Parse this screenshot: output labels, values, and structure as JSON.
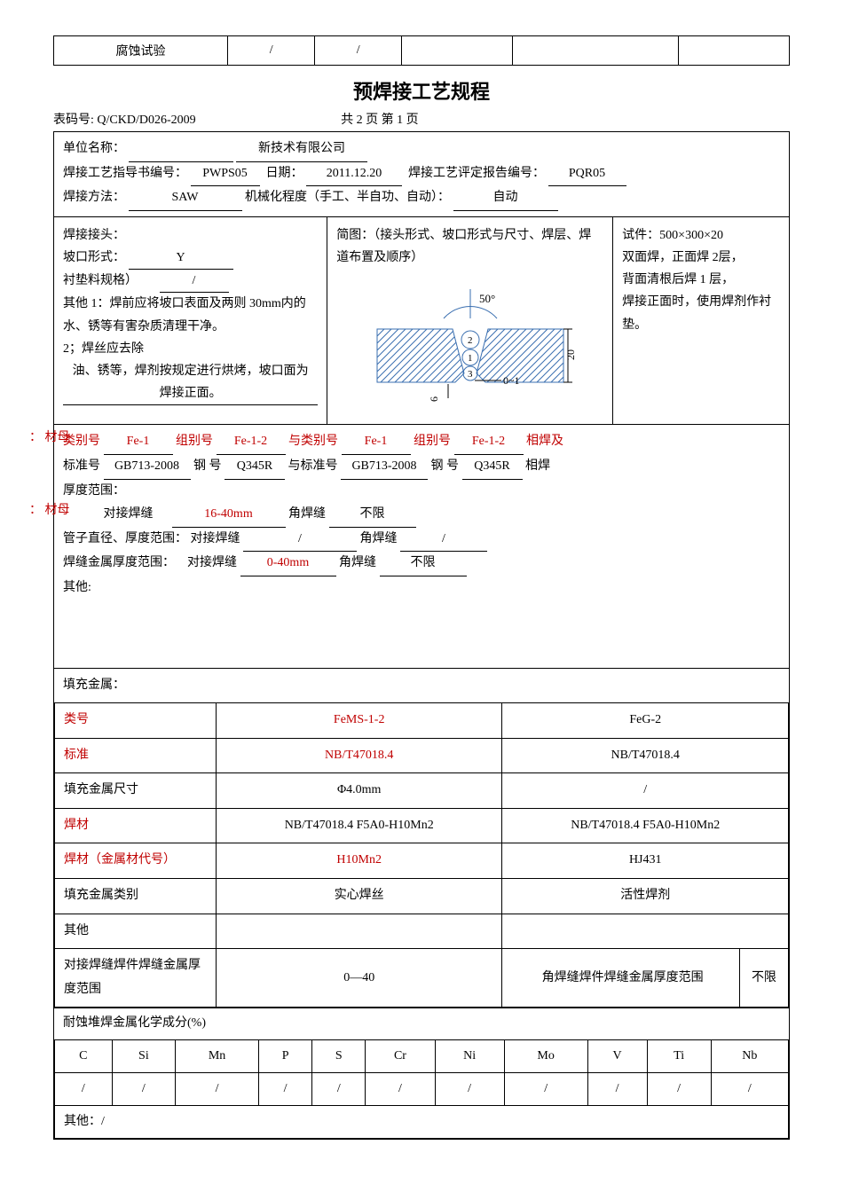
{
  "top_table": {
    "row_label": "腐蚀试验",
    "cells": [
      "/",
      "/",
      "",
      "",
      ""
    ]
  },
  "title": "预焊接工艺规程",
  "form_no_label": "表码号:",
  "form_no": "Q/CKD/D026-2009",
  "page_info": "共  2  页     第  1  页",
  "header": {
    "org_label": "单位名称：",
    "org_value": "新技术有限公司",
    "wps_label": "焊接工艺指导书编号：",
    "wps_value": "PWPS05",
    "date_label": "日期：",
    "date_value": "2011.12.20",
    "pqr_label": "焊接工艺评定报告编号：",
    "pqr_value": "PQR05",
    "method_label": "焊接方法：",
    "method_value": "SAW",
    "mode_label": "机械化程度（手工、半自功、自动）：",
    "mode_value": "自动"
  },
  "joint": {
    "head_label": "焊接接头：",
    "groove_label": "坡口形式：",
    "groove_value": "Y",
    "liner_label": "衬垫料规格）",
    "liner_value": "/",
    "other1": "其他 1：焊前应将坡口表面及两则 30mm内的水、锈等有害杂质清理干净。",
    "other2a": "2；焊丝应去除",
    "other2u": "油、锈等，焊剂按规定进行烘烤，坡口面为焊接正面。",
    "diagram_label": "简图：（接头形式、坡口形式与尺寸、焊层、焊道布置及顺序）",
    "angle": "50°",
    "dim_h": "20",
    "dim_gap": "0~1",
    "dim_bot": "6",
    "layers": [
      "1",
      "2",
      "3"
    ],
    "spec_label": "试件：500×300×20",
    "spec_line1": "双面焊，正面焊 2层，",
    "spec_line2": "背面清根后焊 1 层，",
    "spec_line3": "焊接正面时，使用焊剂作衬垫。"
  },
  "mumu_margin": "：  材母",
  "base": {
    "cat_label": "类别号",
    "cat_val": "Fe-1",
    "grp_label": "组别号",
    "grp_val": "Fe-1-2",
    "with_cat_label": "与类别号",
    "with_cat_val": "Fe-1",
    "with_grp_label": "组别号",
    "with_grp_val": "Fe-1-2",
    "tail1": "相焊及",
    "std_label": "标准号",
    "std_val": "GB713-2008",
    "steel_label": "钢  号",
    "steel_val": "Q345R",
    "with_std_label": "与标准号",
    "with_std_val": "GB713-2008",
    "with_steel_label": "钢  号",
    "with_steel_val": "Q345R",
    "tail2": "相焊",
    "thick_label": "厚度范围：",
    "bw_label": "对接焊缝",
    "bw_val": "16-40mm",
    "fw_label": "角焊缝",
    "fw_val": "不限",
    "pipe_label": "管子直径、厚度范围：",
    "pipe_bw": "对接焊缝",
    "pipe_bw_val": "/",
    "pipe_fw": "角焊缝",
    "pipe_fw_val": "/",
    "wm_label": "焊缝金属厚度范围：",
    "wm_bw": "对接焊缝",
    "wm_bw_val": "0-40mm",
    "wm_fw": "角焊缝",
    "wm_fw_val": "不限",
    "other_label": "其他:"
  },
  "filler": {
    "section_label": "填充金属：",
    "rows": [
      {
        "label": "类号",
        "red": true,
        "c1": "FeMS-1-2",
        "c1_red": true,
        "c2": "FeG-2"
      },
      {
        "label": "标准",
        "red": true,
        "c1": "NB/T47018.4",
        "c1_red": true,
        "c2": "NB/T47018.4"
      },
      {
        "label": "填充金属尺寸",
        "red": false,
        "c1": "Φ4.0mm",
        "c1_red": false,
        "c2": "/"
      },
      {
        "label": "焊材",
        "red": true,
        "c1": "NB/T47018.4  F5A0-H10Mn2",
        "c1_red": false,
        "c2": "NB/T47018.4  F5A0-H10Mn2"
      },
      {
        "label": "焊材（金属材代号）",
        "red": true,
        "c1": "H10Mn2",
        "c1_red": true,
        "c2": "HJ431"
      },
      {
        "label": "填充金属类别",
        "red": false,
        "c1": "实心焊丝",
        "c1_red": false,
        "c2": "活性焊剂"
      },
      {
        "label": "其他",
        "red": false,
        "c1": "",
        "c1_red": false,
        "c2": ""
      }
    ],
    "bw_thick_label": "对接焊缝焊件焊缝金属厚度范围",
    "bw_thick_val": "0—40",
    "fw_thick_label": "角焊缝焊件焊缝金属厚度范围",
    "fw_thick_val": "不限"
  },
  "chem": {
    "label": "耐蚀堆焊金属化学成分(%)",
    "headers": [
      "C",
      "Si",
      "Mn",
      "P",
      "S",
      "Cr",
      "Ni",
      "Mo",
      "V",
      "Ti",
      "Nb"
    ],
    "values": [
      "/",
      "/",
      "/",
      "/",
      "/",
      "/",
      "/",
      "/",
      "/",
      "/",
      "/"
    ],
    "other": "其他：/"
  },
  "svg": {
    "hatch_color": "#3a6fb0",
    "line_color": "#000",
    "bg": "#fff"
  }
}
